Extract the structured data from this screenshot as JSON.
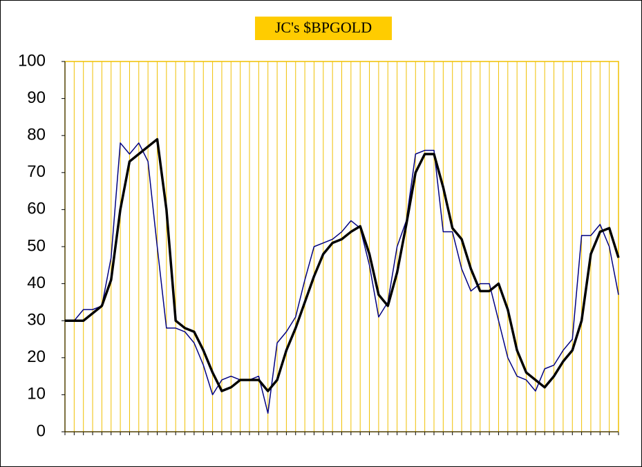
{
  "chart_data": {
    "type": "line",
    "title": "JC's $BPGOLD",
    "title_background": "#ffcc00",
    "grid_color": "#f0c000",
    "categories": [
      null,
      null,
      null,
      null,
      null,
      null,
      null,
      null,
      null,
      null,
      null,
      null,
      null,
      null,
      null,
      null,
      null,
      null,
      null,
      null,
      null,
      null,
      null,
      null,
      null,
      null,
      null,
      null,
      null,
      null,
      null,
      null,
      null,
      null,
      null,
      null,
      null,
      null,
      null,
      null,
      null,
      null,
      null,
      null,
      null,
      null,
      null,
      null,
      null,
      null,
      null,
      null,
      null,
      null,
      null,
      null,
      null,
      null,
      null,
      null,
      null
    ],
    "series": [
      {
        "color": "#000080",
        "width": 1.5,
        "values": [
          30,
          30,
          33,
          33,
          34,
          47,
          78,
          75,
          78,
          73,
          50,
          28,
          28,
          27,
          24,
          18,
          10,
          14,
          15,
          14,
          14,
          15,
          5,
          24,
          27,
          31,
          41,
          50,
          51,
          52,
          54,
          57,
          55,
          45,
          31,
          35,
          50,
          57,
          75,
          76,
          76,
          54,
          54,
          44,
          38,
          40,
          40,
          30,
          20,
          15,
          14,
          11,
          17,
          18,
          22,
          25,
          53,
          53,
          56,
          50,
          37
        ]
      },
      {
        "color": "#000000",
        "width": 3.5,
        "values": [
          30,
          30,
          30,
          32,
          34,
          41,
          60,
          73,
          75,
          77,
          79,
          60,
          30,
          28,
          27,
          22,
          16,
          11,
          12,
          14,
          14,
          14,
          11,
          14,
          22,
          28,
          35,
          42,
          48,
          51,
          52,
          54,
          55.5,
          48,
          37,
          34,
          43,
          56,
          70,
          75,
          75,
          66,
          55,
          52,
          44,
          38,
          38,
          40,
          33,
          22,
          16,
          14,
          12,
          15,
          19,
          22,
          30,
          48,
          54,
          55,
          47
        ]
      }
    ],
    "ylim": [
      0,
      100
    ],
    "yticks": [
      0,
      10,
      20,
      30,
      40,
      50,
      60,
      70,
      80,
      90,
      100
    ]
  }
}
